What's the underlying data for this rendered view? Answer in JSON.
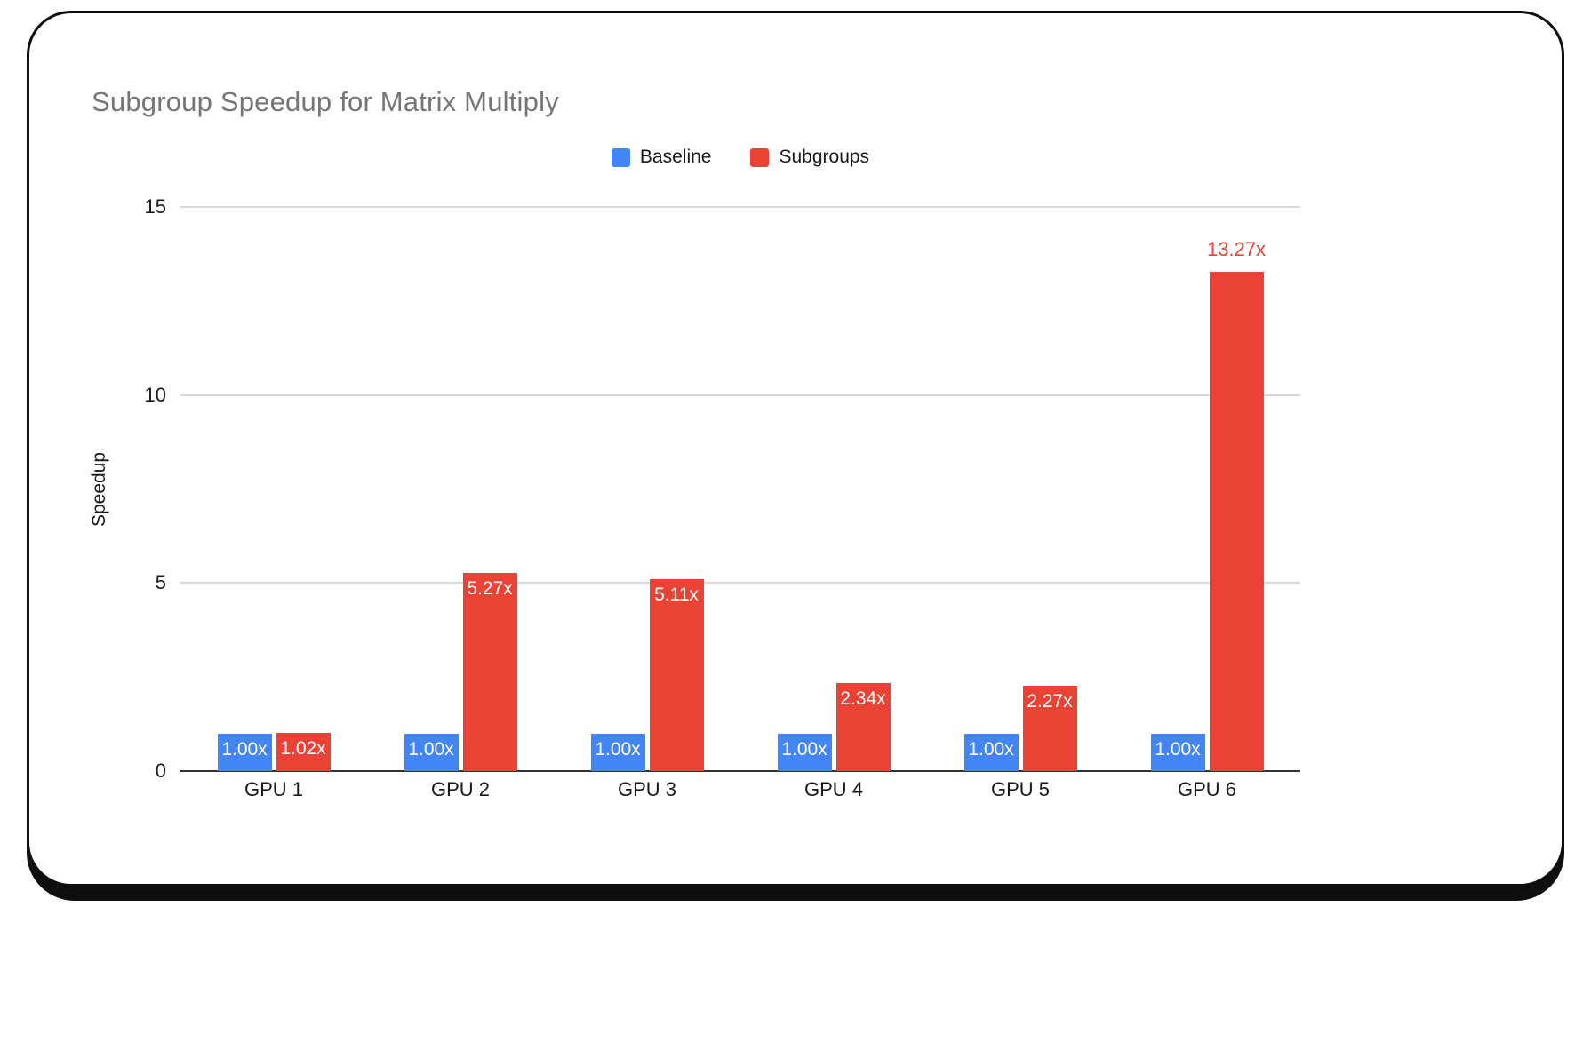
{
  "chart_data": {
    "type": "bar",
    "title": "Subgroup Speedup for Matrix Multiply",
    "ylabel": "Speedup",
    "xlabel": "",
    "categories": [
      "GPU 1",
      "GPU 2",
      "GPU 3",
      "GPU 4",
      "GPU 5",
      "GPU 6"
    ],
    "series": [
      {
        "name": "Baseline",
        "color": "#4285F4",
        "values": [
          1.0,
          1.0,
          1.0,
          1.0,
          1.0,
          1.0
        ],
        "labels": [
          "1.00x",
          "1.00x",
          "1.00x",
          "1.00x",
          "1.00x",
          "1.00x"
        ],
        "label_outside": [
          false,
          false,
          false,
          false,
          false,
          false
        ]
      },
      {
        "name": "Subgroups",
        "color": "#EA4335",
        "values": [
          1.02,
          5.27,
          5.11,
          2.34,
          2.27,
          13.27
        ],
        "labels": [
          "1.02x",
          "5.27x",
          "5.11x",
          "2.34x",
          "2.27x",
          "13.27x"
        ],
        "label_outside": [
          false,
          false,
          false,
          false,
          false,
          true
        ]
      }
    ],
    "ylim": [
      0,
      15
    ],
    "yticks": [
      0,
      5,
      10,
      15
    ],
    "grid": true,
    "legend_position": "top"
  },
  "colors": {
    "title_text": "#757575",
    "axis_text": "#1a1a1a",
    "gridline": "#d9d9d9",
    "axis_line": "#333333",
    "card_border": "#0f0f0f",
    "background": "#ffffff"
  }
}
